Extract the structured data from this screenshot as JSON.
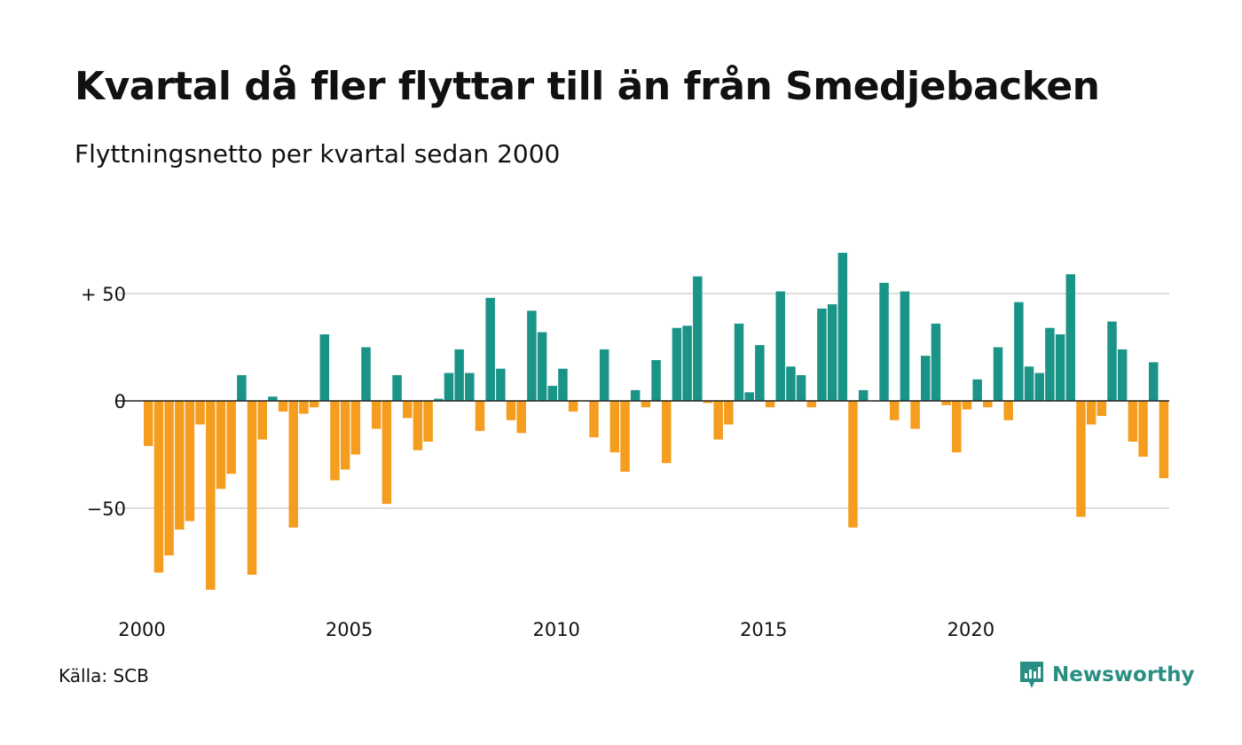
{
  "header": {
    "title": "Kvartal då fler flyttar till än från Smedjebacken",
    "subtitle": "Flyttningsnetto per kvartal sedan 2000"
  },
  "footer": {
    "source": "Källa: SCB",
    "brand": "Newsworthy"
  },
  "colors": {
    "positive": "#1a9486",
    "negative": "#f59d1e",
    "grid": "#dddddd",
    "brand": "#2a8f83"
  },
  "chart_data": {
    "type": "bar",
    "x_start": "2000 Q1",
    "frequency": "quarterly",
    "ylim": [
      -90,
      70
    ],
    "grid": true,
    "yticks": [
      {
        "value": 50,
        "label": "+ 50"
      },
      {
        "value": 0,
        "label": "0"
      },
      {
        "value": -50,
        "label": "−50"
      }
    ],
    "xticks": [
      {
        "index": 0,
        "label": "2000"
      },
      {
        "index": 20,
        "label": "2005"
      },
      {
        "index": 40,
        "label": "2010"
      },
      {
        "index": 60,
        "label": "2015"
      },
      {
        "index": 80,
        "label": "2020"
      }
    ],
    "values": [
      -21,
      -80,
      -72,
      -60,
      -56,
      -11,
      -88,
      -41,
      -34,
      12,
      -81,
      -18,
      2,
      -5,
      -59,
      -6,
      -3,
      31,
      -37,
      -32,
      -25,
      25,
      -13,
      -48,
      12,
      -8,
      -23,
      -19,
      1,
      13,
      24,
      13,
      -14,
      48,
      15,
      -9,
      -15,
      42,
      32,
      7,
      15,
      -5,
      0,
      -17,
      24,
      -24,
      -33,
      5,
      -3,
      19,
      -29,
      34,
      35,
      58,
      -1,
      -18,
      -11,
      36,
      4,
      26,
      -3,
      51,
      16,
      12,
      -3,
      43,
      45,
      69,
      -59,
      5,
      0,
      55,
      -9,
      51,
      -13,
      21,
      36,
      -2,
      -24,
      -4,
      10,
      -3,
      25,
      -9,
      46,
      16,
      13,
      34,
      31,
      59,
      -54,
      -11,
      -7,
      37,
      24,
      -19,
      -26,
      18,
      -36
    ]
  }
}
